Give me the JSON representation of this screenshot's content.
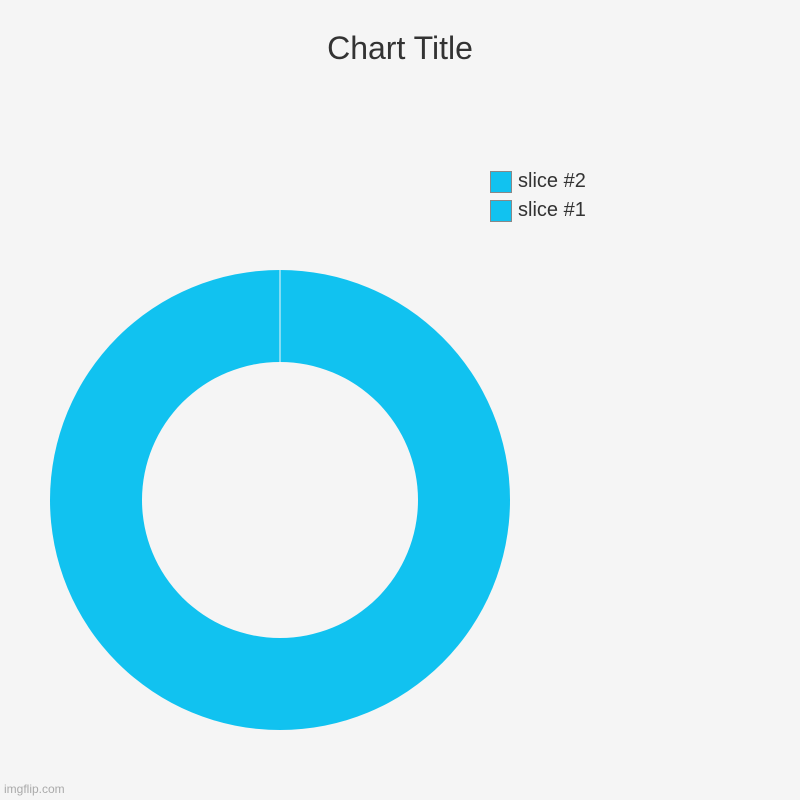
{
  "chart": {
    "type": "donut",
    "title": "Chart Title",
    "title_fontsize": 32,
    "title_color": "#333333",
    "background_color": "#f5f5f5",
    "outer_radius": 230,
    "inner_radius": 138,
    "inner_fill": "#f5f5f5",
    "slices": [
      {
        "label": "slice #1",
        "value": 50,
        "color": "#11c2f0"
      },
      {
        "label": "slice #2",
        "value": 50,
        "color": "#11c2f0"
      }
    ],
    "legend": {
      "position": "right-top",
      "items": [
        {
          "label": "slice #2",
          "swatch_color": "#11c2f0",
          "border_color": "#888888"
        },
        {
          "label": "slice #1",
          "swatch_color": "#11c2f0",
          "border_color": "#888888"
        }
      ],
      "fontsize": 20,
      "label_color": "#333333"
    }
  },
  "watermark": "imgflip.com"
}
